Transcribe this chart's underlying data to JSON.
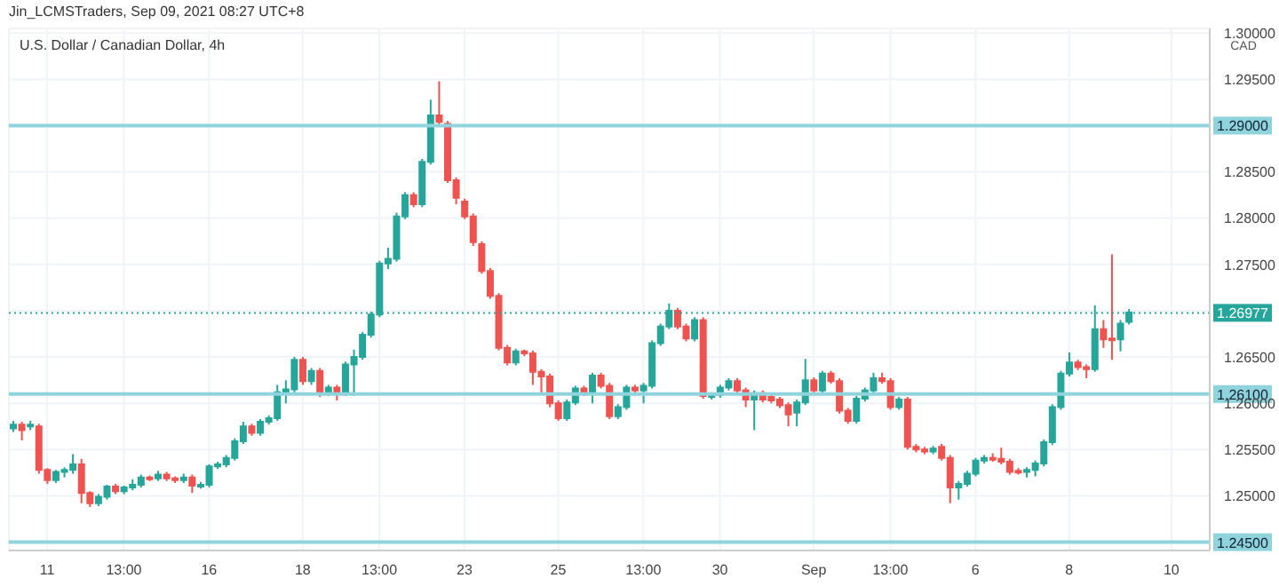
{
  "chart_data": {
    "type": "candlestick",
    "title": "U.S. Dollar / Canadian Dollar, 4h",
    "ylabel": "CAD",
    "annotations": [
      "Jin_LCMSTraders, Sep 09, 2021 08:27 UTC+8"
    ],
    "categories": [
      null,
      null,
      null,
      null,
      "11",
      null,
      null,
      null,
      null,
      null,
      null,
      null,
      null,
      "13:00",
      null,
      null,
      null,
      null,
      null,
      null,
      null,
      null,
      null,
      "16",
      null,
      null,
      null,
      null,
      null,
      null,
      null,
      null,
      null,
      null,
      "18",
      null,
      null,
      null,
      null,
      null,
      null,
      null,
      null,
      "13:00",
      null,
      null,
      null,
      null,
      null,
      null,
      null,
      null,
      null,
      "23",
      null,
      null,
      null,
      null,
      null,
      null,
      null,
      null,
      null,
      null,
      "25",
      null,
      null,
      null,
      null,
      null,
      null,
      null,
      null,
      null,
      "13:00",
      null,
      null,
      null,
      null,
      null,
      null,
      null,
      null,
      "30",
      null,
      null,
      null,
      null,
      null,
      null,
      null,
      null,
      null,
      null,
      "Sep",
      null,
      null,
      null,
      null,
      null,
      null,
      null,
      null,
      "13:00",
      null,
      null,
      null,
      null,
      null,
      null,
      null,
      null,
      null,
      "6",
      null,
      null,
      null,
      null,
      null,
      null,
      null,
      null,
      null,
      null,
      "8",
      null,
      null,
      null,
      null,
      null,
      null,
      null,
      null,
      null,
      null,
      null,
      "10",
      null,
      null,
      null,
      null
    ],
    "colors": [
      "#26a69a",
      "#ef5350",
      "#26a69a",
      "#ef5350",
      "#ef5350",
      "#26a69a",
      "#26a69a",
      "#26a69a",
      "#ef5350",
      "#ef5350",
      "#26a69a",
      "#26a69a",
      "#ef5350",
      "#26a69a",
      "#26a69a",
      "#26a69a",
      "#ef5350",
      "#26a69a",
      "#ef5350",
      "#ef5350",
      "#26a69a",
      "#ef5350",
      "#26a69a",
      "#26a69a",
      "#26a69a",
      "#26a69a",
      "#26a69a",
      "#26a69a",
      "#ef5350",
      "#26a69a",
      "#26a69a",
      "#26a69a",
      "#26a69a",
      "#26a69a",
      "#ef5350",
      "#26a69a",
      "#ef5350",
      "#26a69a",
      "#ef5350",
      "#26a69a",
      "#26a69a",
      "#26a69a",
      "#26a69a",
      "#26a69a",
      "#26a69a",
      "#26a69a",
      "#26a69a",
      "#ef5350",
      "#26a69a",
      "#26a69a",
      "#ef5350",
      "#ef5350",
      "#ef5350",
      "#ef5350",
      "#ef5350",
      "#ef5350",
      "#ef5350",
      "#ef5350",
      "#ef5350",
      "#26a69a",
      "#ef5350",
      "#ef5350",
      "#ef5350",
      "#ef5350",
      "#ef5350",
      "#26a69a",
      "#26a69a",
      "#ef5350",
      "#26a69a",
      "#ef5350",
      "#ef5350",
      "#26a69a",
      "#26a69a",
      "#ef5350",
      "#26a69a",
      "#26a69a",
      "#26a69a",
      "#26a69a",
      "#ef5350",
      "#ef5350",
      "#26a69a",
      "#ef5350",
      "#26a69a",
      "#26a69a",
      "#26a69a",
      "#ef5350",
      "#ef5350",
      "#26a69a",
      "#ef5350",
      "#ef5350",
      "#ef5350",
      "#ef5350",
      "#26a69a",
      "#26a69a",
      "#ef5350",
      "#26a69a",
      "#ef5350",
      "#ef5350",
      "#ef5350",
      "#26a69a",
      "#26a69a",
      "#26a69a",
      "#ef5350",
      "#ef5350",
      "#26a69a",
      "#ef5350",
      "#ef5350",
      "#ef5350",
      "#26a69a",
      "#ef5350",
      "#ef5350",
      "#26a69a",
      "#26a69a",
      "#26a69a",
      "#26a69a",
      "#ef5350",
      "#ef5350",
      "#ef5350",
      "#ef5350",
      "#26a69a",
      "#26a69a",
      "#26a69a",
      "#26a69a",
      "#26a69a",
      "#26a69a",
      "#ef5350",
      "#ef5350",
      "#26a69a",
      "#ef5350",
      "#ef5350",
      "#26a69a",
      "#26a69a",
      null,
      null,
      null,
      null,
      null,
      null,
      null,
      null,
      null
    ],
    "ohlc": [
      [
        1.2573,
        1.2581,
        1.2569,
        1.2577
      ],
      [
        1.2577,
        1.258,
        1.256,
        1.2571
      ],
      [
        1.2575,
        1.2581,
        1.2571,
        1.2577
      ],
      [
        1.2575,
        1.2578,
        1.2524,
        1.2528
      ],
      [
        1.2528,
        1.253,
        1.2513,
        1.2517
      ],
      [
        1.2517,
        1.2528,
        1.2514,
        1.2526
      ],
      [
        1.2526,
        1.2531,
        1.252,
        1.2528
      ],
      [
        1.2528,
        1.2545,
        1.2524,
        1.2534
      ],
      [
        1.2534,
        1.254,
        1.2492,
        1.2503
      ],
      [
        1.2503,
        1.2505,
        1.2488,
        1.2492
      ],
      [
        1.2492,
        1.2502,
        1.2489,
        1.2499
      ],
      [
        1.2499,
        1.2512,
        1.2496,
        1.251
      ],
      [
        1.251,
        1.2513,
        1.2502,
        1.2505
      ],
      [
        1.2505,
        1.2511,
        1.2502,
        1.2509
      ],
      [
        1.2509,
        1.2518,
        1.2506,
        1.2512
      ],
      [
        1.2512,
        1.2523,
        1.2509,
        1.252
      ],
      [
        1.252,
        1.2522,
        1.2516,
        1.2519
      ],
      [
        1.2519,
        1.2527,
        1.2516,
        1.2523
      ],
      [
        1.2523,
        1.2526,
        1.2516,
        1.2519
      ],
      [
        1.2519,
        1.2521,
        1.2514,
        1.2517
      ],
      [
        1.2517,
        1.2524,
        1.2514,
        1.252
      ],
      [
        1.252,
        1.2523,
        1.2503,
        1.2511
      ],
      [
        1.2511,
        1.2515,
        1.2508,
        1.2512
      ],
      [
        1.2512,
        1.2534,
        1.2509,
        1.2532
      ],
      [
        1.2532,
        1.2537,
        1.2529,
        1.2534
      ],
      [
        1.2534,
        1.2544,
        1.2531,
        1.2541
      ],
      [
        1.2541,
        1.2562,
        1.2538,
        1.2559
      ],
      [
        1.2559,
        1.258,
        1.2556,
        1.2575
      ],
      [
        1.2575,
        1.2578,
        1.2565,
        1.2568
      ],
      [
        1.2568,
        1.2583,
        1.2565,
        1.258
      ],
      [
        1.258,
        1.2587,
        1.2577,
        1.2584
      ],
      [
        1.2584,
        1.262,
        1.2581,
        1.2612
      ],
      [
        1.2612,
        1.2625,
        1.26,
        1.2615
      ],
      [
        1.2615,
        1.265,
        1.2611,
        1.2647
      ],
      [
        1.2647,
        1.265,
        1.262,
        1.2624
      ],
      [
        1.2624,
        1.2638,
        1.262,
        1.2635
      ],
      [
        1.2635,
        1.2638,
        1.2607,
        1.2611
      ],
      [
        1.2611,
        1.262,
        1.2608,
        1.2617
      ],
      [
        1.2617,
        1.262,
        1.2603,
        1.2611
      ],
      [
        1.2611,
        1.2645,
        1.2608,
        1.2642
      ],
      [
        1.2642,
        1.2658,
        1.2608,
        1.265
      ],
      [
        1.265,
        1.2677,
        1.2647,
        1.2674
      ],
      [
        1.2674,
        1.2699,
        1.2671,
        1.2696
      ],
      [
        1.2696,
        1.2754,
        1.2693,
        1.2751
      ],
      [
        1.2751,
        1.2768,
        1.2745,
        1.2756
      ],
      [
        1.2756,
        1.2806,
        1.2753,
        1.2802
      ],
      [
        1.2802,
        1.2828,
        1.2799,
        1.2825
      ],
      [
        1.2825,
        1.2828,
        1.2812,
        1.2815
      ],
      [
        1.2815,
        1.2864,
        1.2812,
        1.2861
      ],
      [
        1.2861,
        1.2928,
        1.2858,
        1.2911
      ],
      [
        1.2911,
        1.2948,
        1.2901,
        1.2904
      ],
      [
        1.2902,
        1.2905,
        1.2838,
        1.2841
      ],
      [
        1.2841,
        1.2844,
        1.2815,
        1.2822
      ],
      [
        1.2818,
        1.2821,
        1.2799,
        1.2802
      ],
      [
        1.2802,
        1.2805,
        1.277,
        1.2774
      ],
      [
        1.2772,
        1.2775,
        1.274,
        1.2743
      ],
      [
        1.2743,
        1.2746,
        1.2713,
        1.2716
      ],
      [
        1.2716,
        1.2719,
        1.2657,
        1.266
      ],
      [
        1.266,
        1.2663,
        1.2641,
        1.2644
      ],
      [
        1.2644,
        1.2659,
        1.2641,
        1.2656
      ],
      [
        1.2656,
        1.2658,
        1.2651,
        1.2654
      ],
      [
        1.2654,
        1.2657,
        1.262,
        1.2634
      ],
      [
        1.2634,
        1.2637,
        1.261,
        1.2629
      ],
      [
        1.2629,
        1.2632,
        1.2596,
        1.26
      ],
      [
        1.26,
        1.2603,
        1.2581,
        1.2584
      ],
      [
        1.2584,
        1.2604,
        1.2581,
        1.2601
      ],
      [
        1.2601,
        1.2619,
        1.2598,
        1.2616
      ],
      [
        1.2616,
        1.2619,
        1.2608,
        1.2611
      ],
      [
        1.2611,
        1.2633,
        1.26,
        1.263
      ],
      [
        1.263,
        1.2633,
        1.2616,
        1.2619
      ],
      [
        1.2619,
        1.2622,
        1.2583,
        1.2586
      ],
      [
        1.2586,
        1.2599,
        1.2583,
        1.2596
      ],
      [
        1.2596,
        1.262,
        1.2593,
        1.2617
      ],
      [
        1.2617,
        1.262,
        1.2611,
        1.2614
      ],
      [
        1.2614,
        1.2622,
        1.26,
        1.2619
      ],
      [
        1.2619,
        1.2668,
        1.2616,
        1.2665
      ],
      [
        1.2665,
        1.2686,
        1.2662,
        1.2683
      ],
      [
        1.2683,
        1.2708,
        1.268,
        1.27
      ],
      [
        1.27,
        1.2703,
        1.268,
        1.2683
      ],
      [
        1.2683,
        1.2686,
        1.2667,
        1.267
      ],
      [
        1.267,
        1.2693,
        1.2667,
        1.269
      ],
      [
        1.269,
        1.2693,
        1.2605,
        1.2608
      ],
      [
        1.2607,
        1.2612,
        1.2604,
        1.2609
      ],
      [
        1.2609,
        1.262,
        1.2606,
        1.2617
      ],
      [
        1.2617,
        1.2627,
        1.2614,
        1.2624
      ],
      [
        1.2624,
        1.2627,
        1.2611,
        1.2614
      ],
      [
        1.2614,
        1.2617,
        1.2596,
        1.2604
      ],
      [
        1.2604,
        1.2614,
        1.2571,
        1.2611
      ],
      [
        1.2611,
        1.2614,
        1.2601,
        1.2604
      ],
      [
        1.2607,
        1.261,
        1.26,
        1.2603
      ],
      [
        1.2604,
        1.2607,
        1.2595,
        1.2598
      ],
      [
        1.2598,
        1.2601,
        1.2575,
        1.2588
      ],
      [
        1.259,
        1.2604,
        1.2575,
        1.2601
      ],
      [
        1.2601,
        1.2648,
        1.2598,
        1.2625
      ],
      [
        1.2625,
        1.2628,
        1.2611,
        1.2614
      ],
      [
        1.2614,
        1.2635,
        1.2611,
        1.2632
      ],
      [
        1.2632,
        1.2635,
        1.2621,
        1.2624
      ],
      [
        1.2624,
        1.2627,
        1.2589,
        1.2592
      ],
      [
        1.2592,
        1.2595,
        1.2578,
        1.2581
      ],
      [
        1.2581,
        1.2608,
        1.2578,
        1.2605
      ],
      [
        1.2605,
        1.2617,
        1.2602,
        1.2614
      ],
      [
        1.2614,
        1.2633,
        1.2611,
        1.2627
      ],
      [
        1.2627,
        1.2633,
        1.2621,
        1.2624
      ],
      [
        1.2624,
        1.2627,
        1.2593,
        1.2596
      ],
      [
        1.2596,
        1.2607,
        1.2593,
        1.2604
      ],
      [
        1.2604,
        1.2607,
        1.255,
        1.2553
      ],
      [
        1.2553,
        1.2556,
        1.2547,
        1.255
      ],
      [
        1.255,
        1.2553,
        1.2545,
        1.2548
      ],
      [
        1.2548,
        1.2554,
        1.2545,
        1.2551
      ],
      [
        1.2553,
        1.2556,
        1.2538,
        1.2541
      ],
      [
        1.2541,
        1.2544,
        1.2492,
        1.2509
      ],
      [
        1.2509,
        1.2516,
        1.2496,
        1.2513
      ],
      [
        1.2513,
        1.2527,
        1.251,
        1.2524
      ],
      [
        1.2524,
        1.2541,
        1.2521,
        1.2538
      ],
      [
        1.2538,
        1.2544,
        1.2535,
        1.2541
      ],
      [
        1.2541,
        1.2546,
        1.2537,
        1.254
      ],
      [
        1.254,
        1.2552,
        1.2534,
        1.2537
      ],
      [
        1.2537,
        1.254,
        1.2523,
        1.2526
      ],
      [
        1.2527,
        1.253,
        1.2523,
        1.2526
      ],
      [
        1.2526,
        1.2531,
        1.252,
        1.2528
      ],
      [
        1.2528,
        1.2538,
        1.2521,
        1.2535
      ],
      [
        1.2535,
        1.2561,
        1.2532,
        1.2558
      ],
      [
        1.2558,
        1.2599,
        1.2555,
        1.2596
      ],
      [
        1.2596,
        1.2635,
        1.2593,
        1.2632
      ],
      [
        1.2632,
        1.2655,
        1.2629,
        1.2644
      ],
      [
        1.2644,
        1.2647,
        1.2636,
        1.2639
      ],
      [
        1.2639,
        1.2642,
        1.2627,
        1.2637
      ],
      [
        1.2637,
        1.2706,
        1.2634,
        1.268
      ],
      [
        1.268,
        1.269,
        1.266,
        1.2669
      ],
      [
        1.267,
        1.2761,
        1.2647,
        1.2669
      ],
      [
        1.2669,
        1.269,
        1.2656,
        1.2686
      ],
      [
        1.2688,
        1.2702,
        1.2685,
        1.2698
      ],
      null,
      null,
      null,
      null,
      null,
      null,
      null,
      null,
      null
    ],
    "ylim": [
      1.2441,
      1.3005
    ],
    "yticks": [
      {
        "value": 1.25,
        "label": "1.25000"
      },
      {
        "value": 1.255,
        "label": "1.25500"
      },
      {
        "value": 1.26,
        "label": "1.26000"
      },
      {
        "value": 1.265,
        "label": "1.26500"
      },
      {
        "value": 1.27,
        "label": null
      },
      {
        "value": 1.275,
        "label": "1.27500"
      },
      {
        "value": 1.28,
        "label": "1.28000"
      },
      {
        "value": 1.285,
        "label": "1.28500"
      },
      {
        "value": 1.295,
        "label": "1.29500"
      },
      {
        "value": 1.3,
        "label": "1.30000"
      }
    ],
    "ref_lines": [
      {
        "axis": "y",
        "value": 1.29,
        "label": "1.29000",
        "color": "#8fd3dd"
      },
      {
        "axis": "y",
        "value": 1.261,
        "label": "1.26100",
        "color": "#8fd3dd"
      },
      {
        "axis": "y",
        "value": 1.245,
        "label": "1.24500",
        "color": "#8fd3dd"
      },
      {
        "axis": "y",
        "value": 1.26977,
        "label": "1.26977",
        "color": "#26a69a",
        "line_style": "dotted"
      }
    ],
    "grid": true
  }
}
